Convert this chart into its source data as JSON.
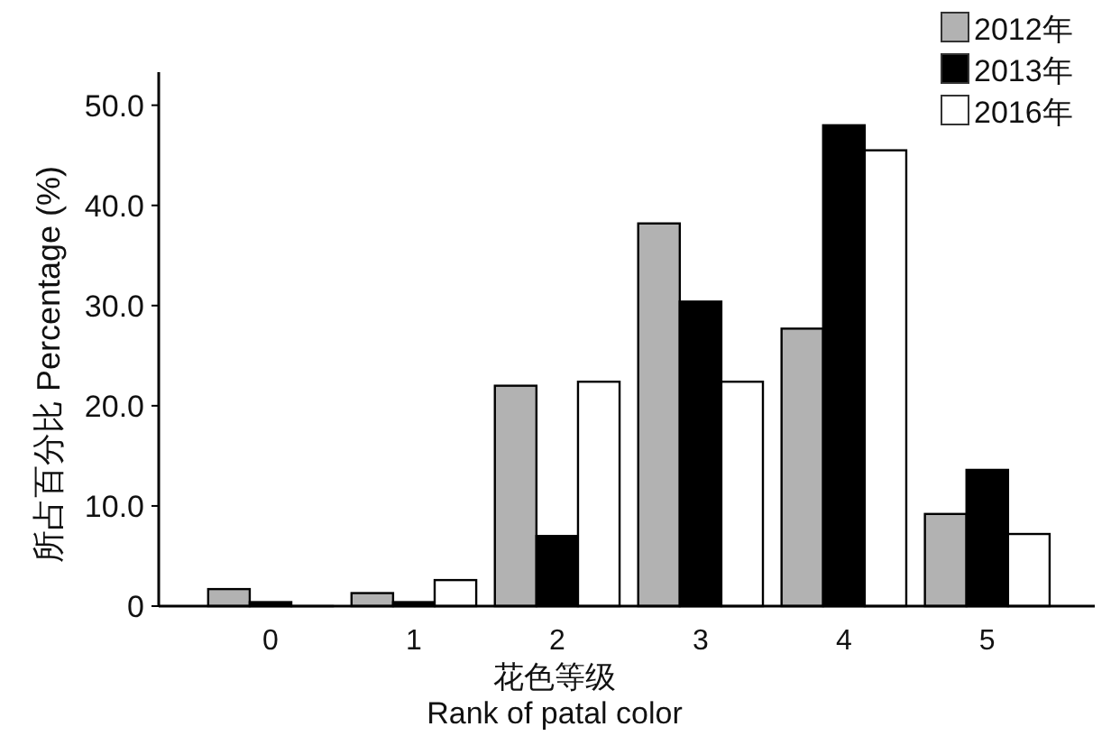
{
  "chart_data": {
    "type": "bar",
    "xlabel": "花色等级\nRank of patal color",
    "ylabel": "所占百分比  Percentage (%)",
    "categories": [
      "0",
      "1",
      "2",
      "3",
      "4",
      "5"
    ],
    "series": [
      {
        "name": "2012年",
        "color": "#b2b2b2",
        "values": [
          1.7,
          1.3,
          22.0,
          38.2,
          27.7,
          9.2
        ]
      },
      {
        "name": "2013年",
        "color": "#000000",
        "values": [
          0.4,
          0.4,
          7.0,
          30.4,
          48.0,
          13.6
        ]
      },
      {
        "name": "2016年",
        "color": "#ffffff",
        "values": [
          0,
          2.6,
          22.4,
          22.4,
          45.5,
          7.2
        ]
      }
    ],
    "ylim": [
      0,
      53.3
    ],
    "yticks": [
      0,
      {
        "value": 10,
        "label": "10.0"
      },
      {
        "value": 20,
        "label": "20.0"
      },
      {
        "value": 30,
        "label": "30.0"
      },
      {
        "value": 40,
        "label": "40.0"
      },
      {
        "value": 50,
        "label": "50.0"
      }
    ],
    "legend": "top right",
    "grid": false
  }
}
